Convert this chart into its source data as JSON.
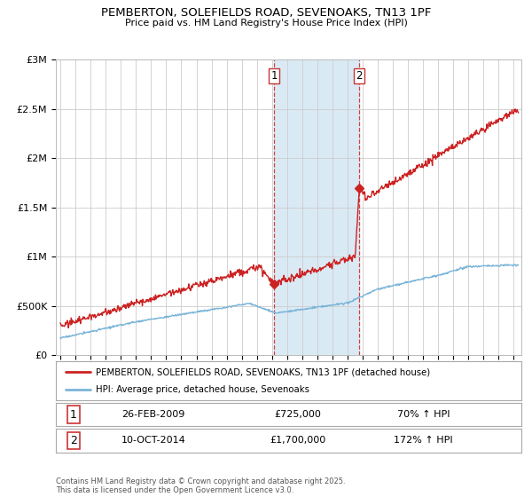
{
  "title": "PEMBERTON, SOLEFIELDS ROAD, SEVENOAKS, TN13 1PF",
  "subtitle": "Price paid vs. HM Land Registry's House Price Index (HPI)",
  "ylabel_ticks": [
    "£0",
    "£500K",
    "£1M",
    "£1.5M",
    "£2M",
    "£2.5M",
    "£3M"
  ],
  "ytick_values": [
    0,
    500000,
    1000000,
    1500000,
    2000000,
    2500000,
    3000000
  ],
  "ylim": [
    0,
    3000000
  ],
  "xlim_start": 1994.7,
  "xlim_end": 2025.5,
  "hpi_color": "#7ab5d8",
  "price_color": "#cc2222",
  "sale1_date": 2009.15,
  "sale1_price": 725000,
  "sale1_label": "1",
  "sale2_date": 2014.77,
  "sale2_price": 1700000,
  "sale2_label": "2",
  "legend_line1": "PEMBERTON, SOLEFIELDS ROAD, SEVENOAKS, TN13 1PF (detached house)",
  "legend_line2": "HPI: Average price, detached house, Sevenoaks",
  "table_row1": [
    "1",
    "26-FEB-2009",
    "£725,000",
    "70% ↑ HPI"
  ],
  "table_row2": [
    "2",
    "10-OCT-2014",
    "£1,700,000",
    "172% ↑ HPI"
  ],
  "footnote": "Contains HM Land Registry data © Crown copyright and database right 2025.\nThis data is licensed under the Open Government Licence v3.0.",
  "background_color": "#ffffff",
  "plot_bg_color": "#ffffff",
  "grid_color": "#cccccc",
  "highlight_fill": "#daeaf5"
}
